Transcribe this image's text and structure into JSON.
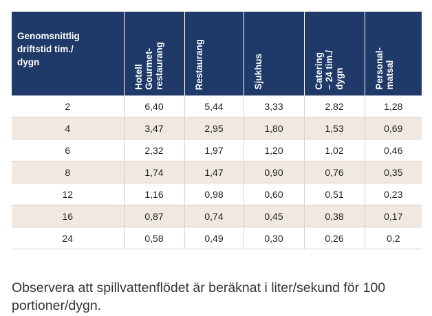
{
  "table": {
    "corner_header": "Genomsnittlig\ndriftstid tim./\ndygn",
    "columns": [
      "Hotell\nGourmet-\nrestaurang",
      "Restaurang",
      "Sjukhus",
      "Catering\n– 24 tim./\ndygn",
      "Personal-\nmatsal"
    ],
    "rows": [
      {
        "hours": "2",
        "values": [
          "6,40",
          "5,44",
          "3,33",
          "2,82",
          "1,28"
        ]
      },
      {
        "hours": "4",
        "values": [
          "3,47",
          "2,95",
          "1,80",
          "1,53",
          "0,69"
        ]
      },
      {
        "hours": "6",
        "values": [
          "2,32",
          "1,97",
          "1,20",
          "1,02",
          "0,46"
        ]
      },
      {
        "hours": "8",
        "values": [
          "1,74",
          "1,47",
          "0,90",
          "0,76",
          "0,35"
        ]
      },
      {
        "hours": "12",
        "values": [
          "1,16",
          "0,98",
          "0,60",
          "0,51",
          "0,23"
        ]
      },
      {
        "hours": "16",
        "values": [
          "0,87",
          "0,74",
          "0,45",
          "0,38",
          "0,17"
        ]
      },
      {
        "hours": "24",
        "values": [
          "0,58",
          "0,49",
          "0,30",
          "0,26",
          "0,2"
        ]
      }
    ]
  },
  "note": "Observera att spillvattenflödet är beräknat i liter/sekund för 100 portioner/dygn."
}
